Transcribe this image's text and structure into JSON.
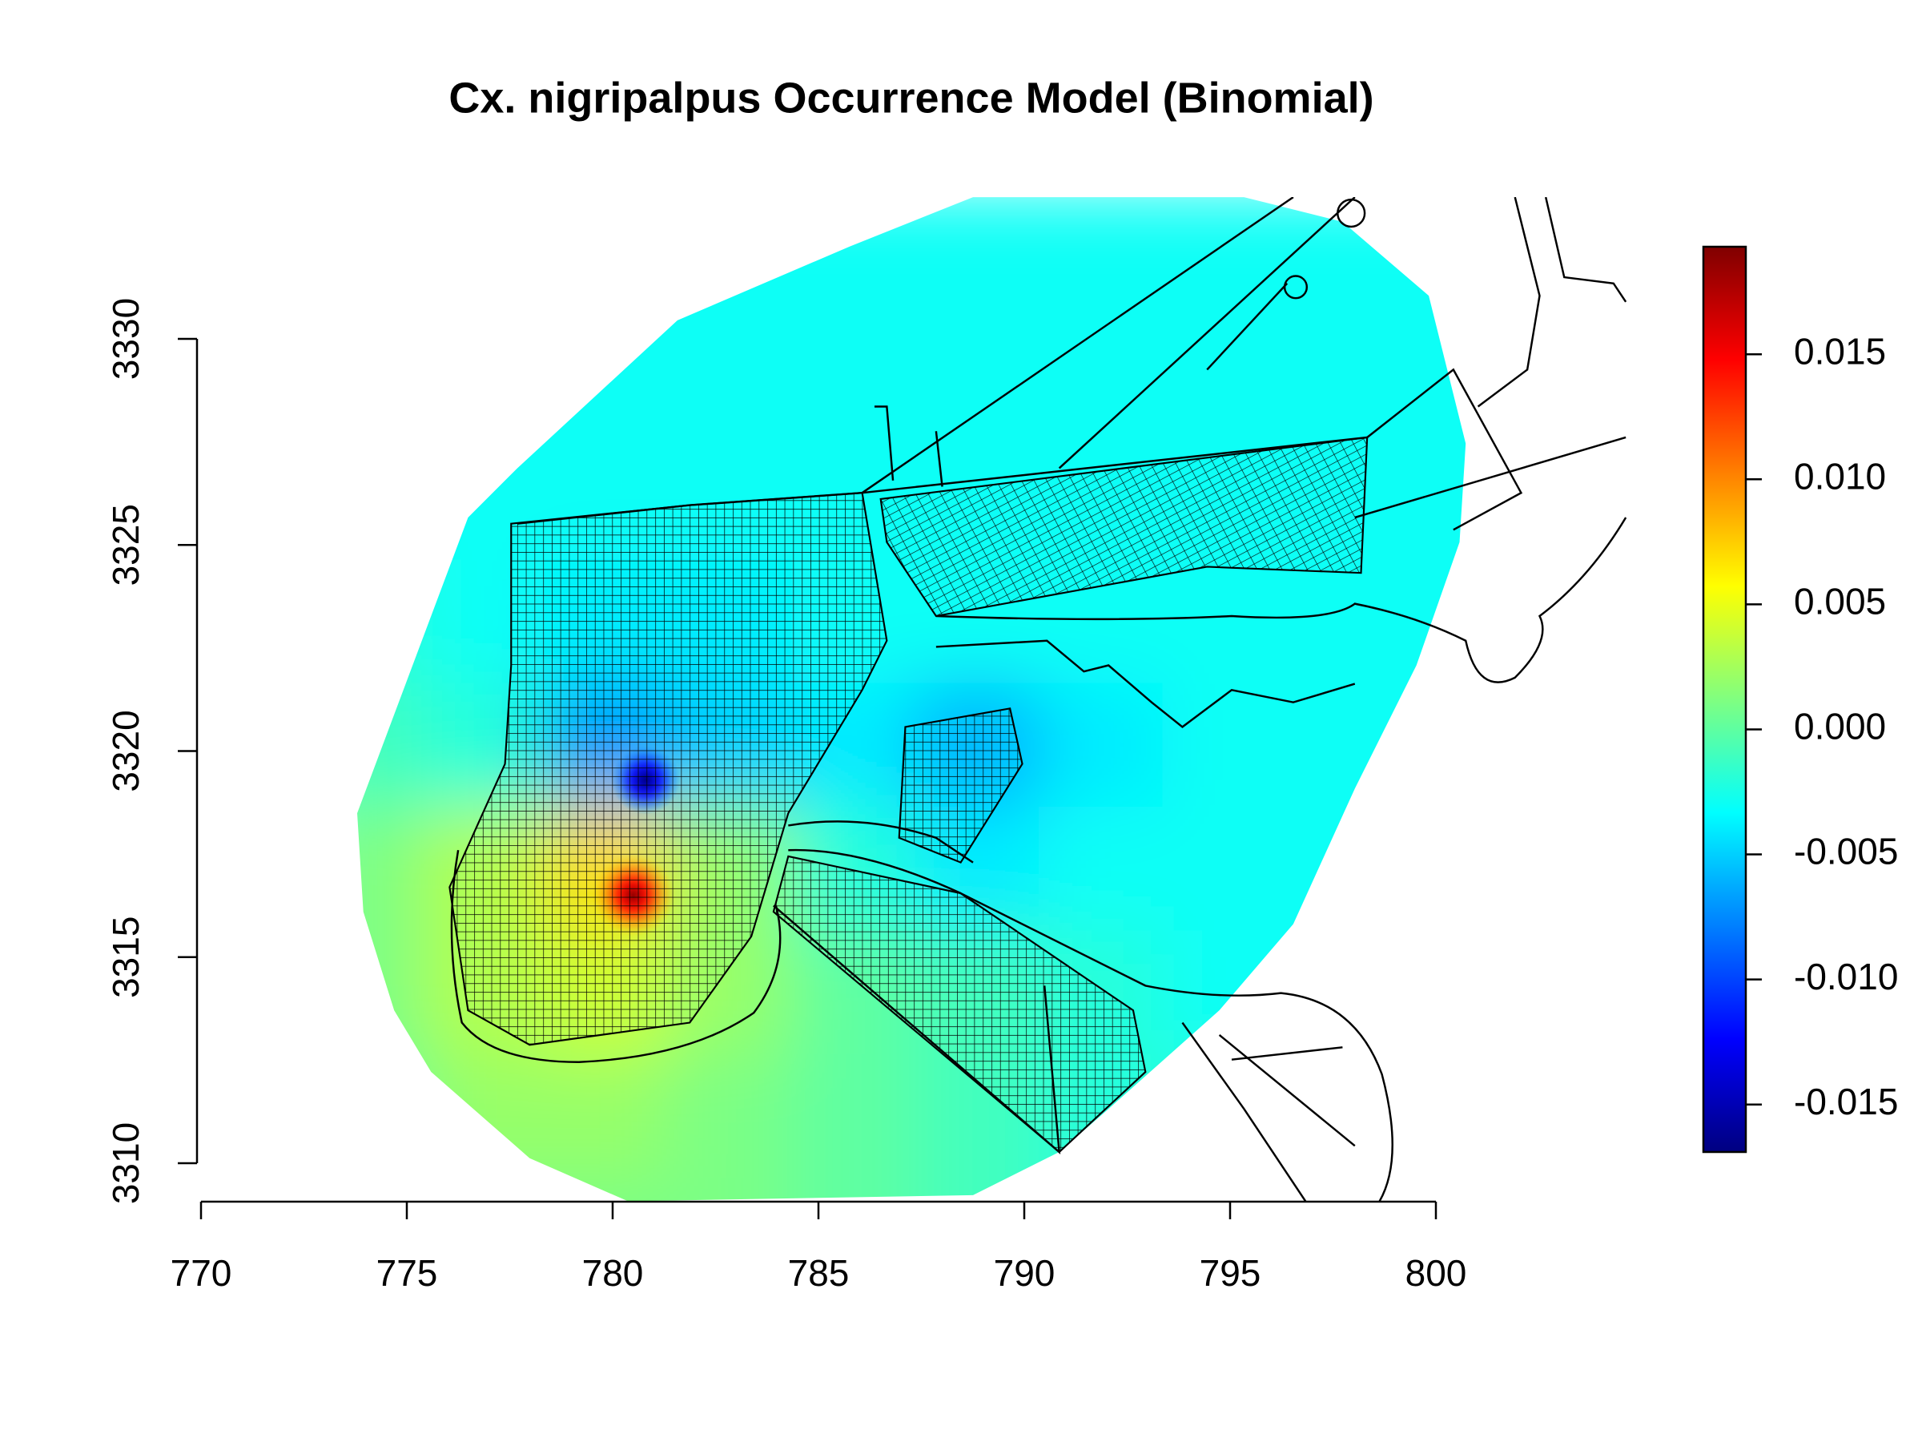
{
  "chart_data": {
    "type": "heatmap",
    "title": "Cx. nigripalpus Occurrence Model (Binomial)",
    "colormap": "jet",
    "xlim": [
      770,
      800
    ],
    "xticks": [
      770,
      775,
      780,
      785,
      790,
      795,
      800
    ],
    "ylim": [
      3310,
      3330
    ],
    "yticks": [
      3310,
      3315,
      3320,
      3325,
      3330
    ],
    "colorbar": {
      "lim": [
        -0.0169,
        0.0193
      ],
      "ticks": [
        -0.015,
        {
          "value": -0.01,
          "label": "-0.010"
        },
        -0.005,
        {
          "value": 0,
          "label": "0.000"
        },
        0.005,
        {
          "value": 0.01,
          "label": "0.010"
        },
        0.015
      ]
    },
    "grid": {
      "x": [
        774,
        777,
        780,
        783,
        786,
        789,
        792,
        795,
        798,
        801,
        804
      ],
      "y": [
        3332,
        3329,
        3326,
        3323,
        3320,
        3317,
        3314,
        3311,
        3308
      ],
      "values": [
        [
          -0.003,
          -0.003,
          -0.003,
          -0.003,
          -0.003,
          -0.003,
          -0.003,
          -0.003,
          -0.003,
          -0.003,
          -0.003
        ],
        [
          -0.003,
          -0.003,
          -0.003,
          -0.003,
          -0.003,
          -0.003,
          -0.003,
          -0.003,
          -0.003,
          -0.003,
          -0.003
        ],
        [
          -0.003,
          -0.003,
          -0.003,
          -0.003,
          -0.003,
          -0.003,
          -0.003,
          -0.003,
          -0.003,
          -0.003,
          -0.003
        ],
        [
          -0.002,
          -0.003,
          -0.004,
          -0.004,
          -0.003,
          -0.003,
          -0.003,
          -0.003,
          -0.003,
          -0.003,
          -0.003
        ],
        [
          -0.001,
          -0.002,
          -0.007,
          -0.005,
          -0.004,
          -0.006,
          -0.004,
          -0.003,
          -0.003,
          -0.003,
          -0.003
        ],
        [
          0.001,
          0.003,
          0.007,
          0.002,
          -0.002,
          -0.004,
          -0.003,
          -0.003,
          -0.003,
          -0.003,
          -0.003
        ],
        [
          0.001,
          0.003,
          0.004,
          0.002,
          0,
          -0.001,
          -0.002,
          -0.003,
          -0.003,
          -0.003,
          -0.003
        ],
        [
          0,
          0.002,
          0.002,
          0.001,
          0,
          -0.001,
          -0.002,
          -0.002,
          -0.003,
          -0.003,
          -0.003
        ],
        [
          0,
          0.001,
          0.001,
          0.001,
          0,
          -0.001,
          -0.002,
          -0.002,
          -0.003,
          -0.003,
          -0.003
        ]
      ]
    },
    "peaks": [
      {
        "x": 780.8,
        "y": 3319.3,
        "value": -0.0165
      },
      {
        "x": 780.5,
        "y": 3316.5,
        "value": 0.0185
      },
      {
        "x": 789.2,
        "y": 3319.4,
        "value": -0.006
      }
    ]
  }
}
